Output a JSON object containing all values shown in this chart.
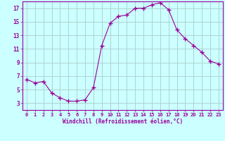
{
  "x": [
    0,
    1,
    2,
    3,
    4,
    5,
    6,
    7,
    8,
    9,
    10,
    11,
    12,
    13,
    14,
    15,
    16,
    17,
    18,
    19,
    20,
    21,
    22,
    23
  ],
  "y": [
    6.5,
    6.0,
    6.2,
    4.5,
    3.8,
    3.3,
    3.3,
    3.5,
    5.3,
    11.5,
    14.8,
    15.8,
    16.0,
    17.0,
    17.0,
    17.5,
    17.8,
    16.8,
    13.8,
    12.5,
    11.5,
    10.5,
    9.2,
    8.8
  ],
  "line_color": "#990099",
  "marker": "+",
  "marker_size": 4,
  "bg_color": "#ccffff",
  "grid_color": "#aacccc",
  "xlabel": "Windchill (Refroidissement éolien,°C)",
  "xlabel_color": "#990099",
  "tick_color": "#990099",
  "ylim": [
    2,
    18
  ],
  "xlim": [
    -0.5,
    23.5
  ],
  "yticks": [
    3,
    5,
    7,
    9,
    11,
    13,
    15,
    17
  ],
  "xticks": [
    0,
    1,
    2,
    3,
    4,
    5,
    6,
    7,
    8,
    9,
    10,
    11,
    12,
    13,
    14,
    15,
    16,
    17,
    18,
    19,
    20,
    21,
    22,
    23
  ]
}
